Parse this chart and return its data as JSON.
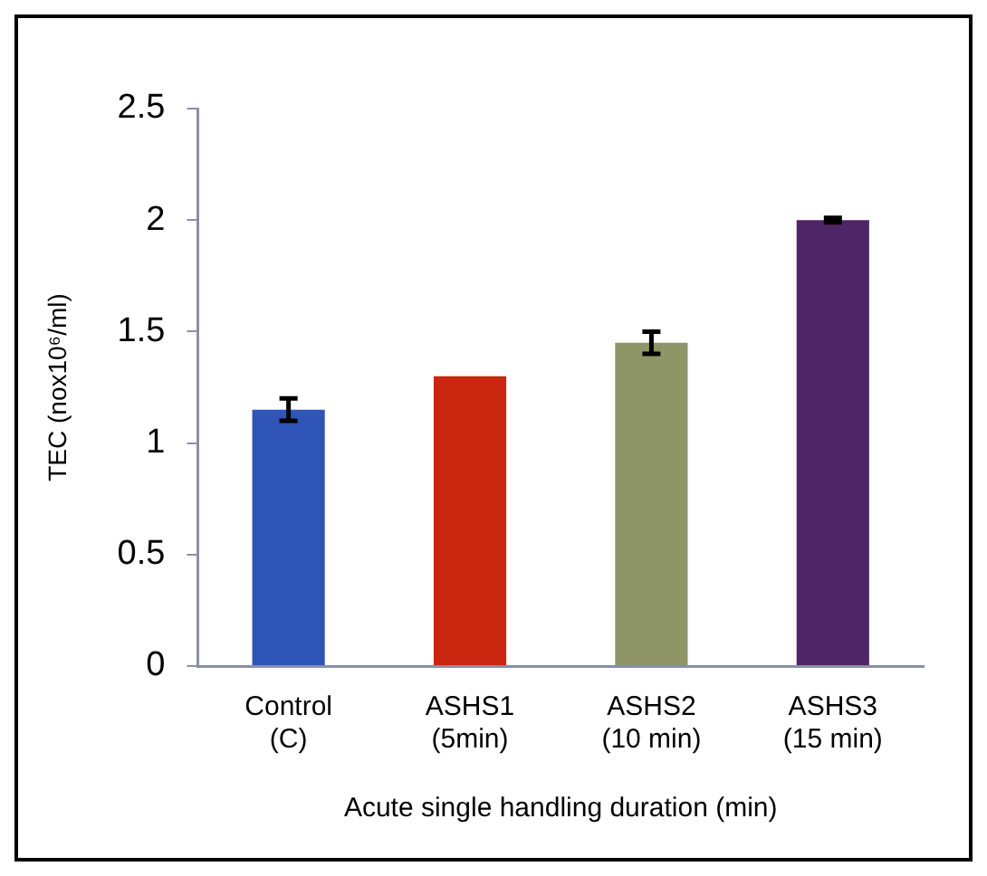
{
  "chart_data": {
    "type": "bar",
    "ylabel": "TEC (nox10⁶/ml)",
    "xlabel": "Acute single handling duration (min)",
    "categories": [
      "Control (C)",
      "ASHS1 (5min)",
      "ASHS2 (10 min)",
      "ASHS3 (15 min)"
    ],
    "values": [
      1.15,
      1.3,
      1.45,
      2.0
    ],
    "colors": [
      "#2f55b8",
      "#c8260f",
      "#8e9566",
      "#4e2566"
    ],
    "errors": [
      0.05,
      null,
      0.05,
      0.01
    ],
    "ylim": [
      0,
      2.5
    ],
    "yticks": [
      0,
      0.5,
      1,
      1.5,
      2,
      2.5
    ],
    "grid": false,
    "legend": false
  }
}
